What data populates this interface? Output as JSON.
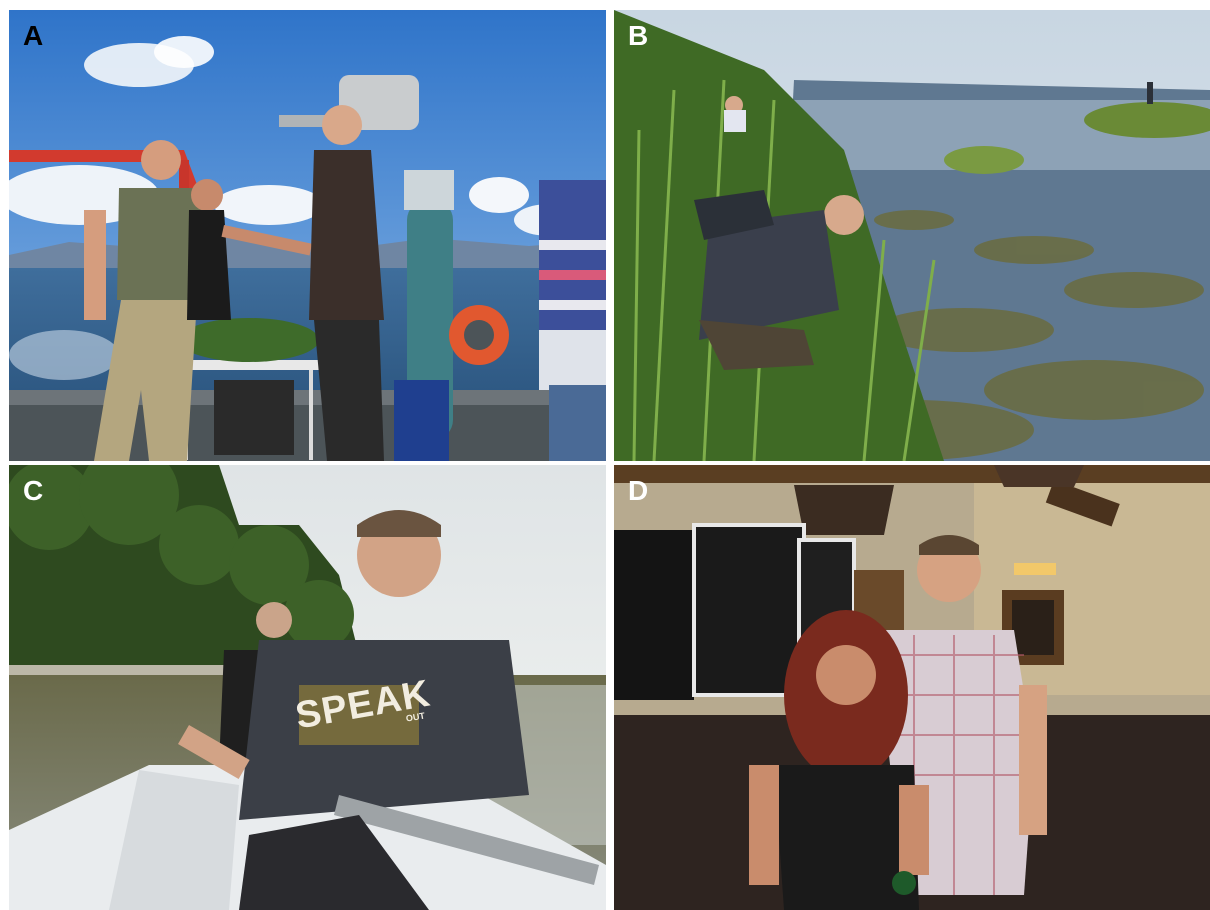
{
  "panels": [
    {
      "label": "A",
      "label_color": "#000000"
    },
    {
      "label": "B",
      "label_color": "#ffffff"
    },
    {
      "label": "C",
      "label_color": "#ffffff"
    },
    {
      "label": "D",
      "label_color": "#ffffff"
    }
  ],
  "shirt_print": {
    "line1": "SPEAK",
    "line2": "OUT"
  }
}
